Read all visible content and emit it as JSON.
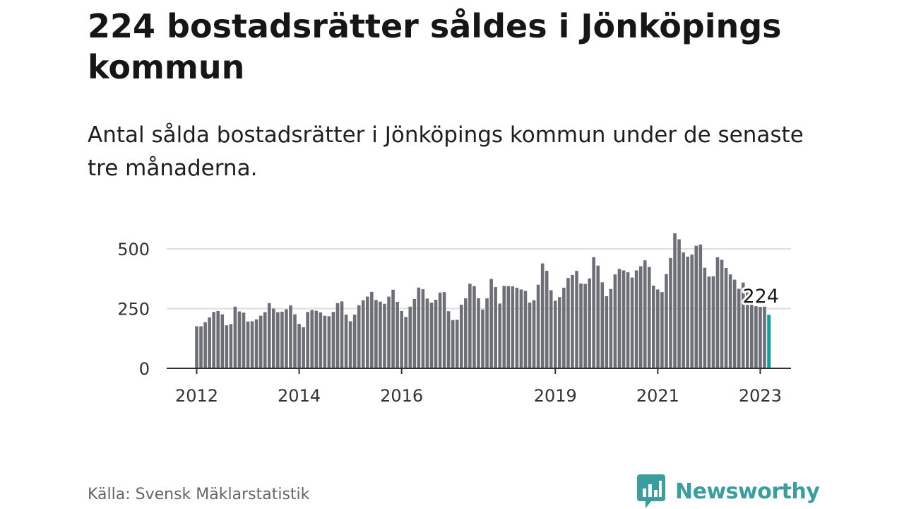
{
  "title": "224 bostadsrätter såldes i Jönköpings kommun",
  "subtitle": "Antal sålda bostadsrätter i Jönköpings kommun under de senaste tre månaderna.",
  "source": "Källa: Svensk Mäklarstatistik",
  "brand": "Newsworthy",
  "colors": {
    "bar": "#6e6e76",
    "highlight": "#159e9e",
    "grid": "#dddddd",
    "axis": "#333333",
    "brand": "#3a9e9e"
  },
  "chart_data": {
    "type": "bar",
    "x_start": "2012-01",
    "x_step": "month",
    "x_ticks": [
      "2012",
      "2014",
      "2016",
      "2019",
      "2021",
      "2023"
    ],
    "x_tick_positions": [
      "2012-01",
      "2014-01",
      "2016-01",
      "2019-01",
      "2021-01",
      "2023-01"
    ],
    "y_ticks": [
      "0",
      "250",
      "500"
    ],
    "y_tick_values": [
      0,
      250,
      500
    ],
    "ylim": [
      0,
      560
    ],
    "grid": true,
    "highlight_last": true,
    "last_label": "224",
    "values": [
      176,
      176,
      193,
      213,
      236,
      240,
      226,
      180,
      185,
      258,
      238,
      233,
      196,
      197,
      205,
      220,
      235,
      273,
      250,
      235,
      237,
      247,
      263,
      226,
      186,
      172,
      236,
      244,
      241,
      234,
      220,
      218,
      236,
      273,
      280,
      225,
      197,
      225,
      264,
      285,
      300,
      320,
      286,
      279,
      270,
      300,
      329,
      278,
      240,
      215,
      258,
      290,
      338,
      331,
      292,
      275,
      287,
      317,
      319,
      239,
      202,
      203,
      266,
      293,
      354,
      344,
      293,
      246,
      293,
      374,
      340,
      271,
      345,
      344,
      343,
      337,
      330,
      324,
      275,
      285,
      350,
      439,
      408,
      327,
      283,
      298,
      337,
      378,
      391,
      408,
      355,
      353,
      376,
      465,
      430,
      360,
      302,
      332,
      393,
      416,
      410,
      402,
      380,
      410,
      427,
      452,
      424,
      346,
      330,
      319,
      394,
      462,
      565,
      540,
      485,
      467,
      476,
      513,
      518,
      421,
      384,
      385,
      465,
      454,
      420,
      393,
      371,
      333,
      359,
      338,
      286,
      260,
      257,
      258,
      224
    ]
  }
}
